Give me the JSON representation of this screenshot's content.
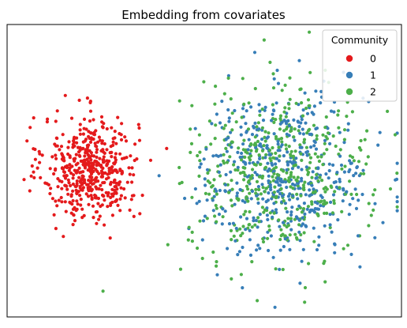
{
  "chart_data": {
    "type": "scatter",
    "title": "Embedding from covariates",
    "xlabel": "",
    "ylabel": "",
    "xlim": [
      -4.6,
      4.6
    ],
    "ylim": [
      -3.8,
      3.8
    ],
    "grid": false,
    "axis_ticks": false,
    "legend": {
      "title": "Community",
      "placement": "top-right",
      "entries": [
        "0",
        "1",
        "2"
      ]
    },
    "series": [
      {
        "name": "0",
        "color": "#e41a1c",
        "distribution": "gaussian cluster",
        "center": [
          -2.65,
          0.05
        ],
        "spread": [
          0.55,
          0.68
        ],
        "count": 500
      },
      {
        "name": "1",
        "color": "#377eb8",
        "distribution": "gaussian cluster",
        "center": [
          1.85,
          -0.1
        ],
        "spread": [
          1.0,
          1.05
        ],
        "count": 500
      },
      {
        "name": "2",
        "color": "#4daf4a",
        "distribution": "gaussian cluster",
        "center": [
          1.75,
          -0.05
        ],
        "spread": [
          1.05,
          1.1
        ],
        "count": 500
      }
    ]
  }
}
